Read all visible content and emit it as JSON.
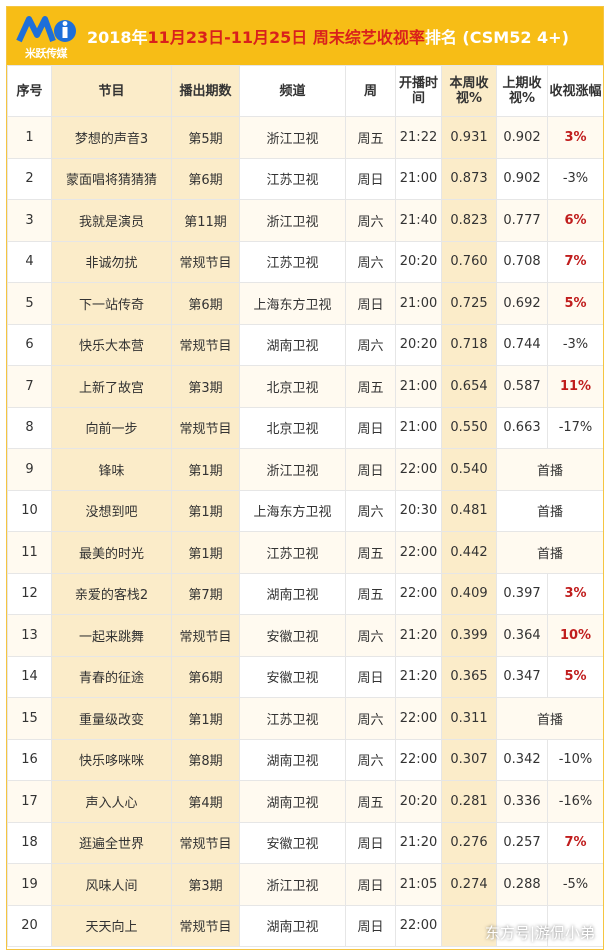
{
  "header": {
    "brand_text": "米跃传媒",
    "title_prefix": "2018年",
    "title_dates": "11月23日-11月25日 周末综艺收视率",
    "title_suffix": "排名 (CSM52 4+)"
  },
  "colors": {
    "banner": "#f7bd16",
    "accent_red": "#d9201c",
    "highlight_col": "#fbecc9"
  },
  "columns": [
    "序号",
    "节目",
    "播出期数",
    "频道",
    "周",
    "开播时间",
    "本周收视%",
    "上期收视%",
    "收视涨幅"
  ],
  "rows": [
    {
      "rank": "1",
      "program": "梦想的声音3",
      "episode": "第5期",
      "channel": "浙江卫视",
      "day": "周五",
      "time": "21:22",
      "this_week": "0.931",
      "last": "0.902",
      "change": "3%",
      "up": true
    },
    {
      "rank": "2",
      "program": "蒙面唱将猜猜猜",
      "episode": "第6期",
      "channel": "江苏卫视",
      "day": "周日",
      "time": "21:00",
      "this_week": "0.873",
      "last": "0.902",
      "change": "-3%",
      "up": false
    },
    {
      "rank": "3",
      "program": "我就是演员",
      "episode": "第11期",
      "channel": "浙江卫视",
      "day": "周六",
      "time": "21:40",
      "this_week": "0.823",
      "last": "0.777",
      "change": "6%",
      "up": true
    },
    {
      "rank": "4",
      "program": "非诚勿扰",
      "episode": "常规节目",
      "channel": "江苏卫视",
      "day": "周六",
      "time": "20:20",
      "this_week": "0.760",
      "last": "0.708",
      "change": "7%",
      "up": true
    },
    {
      "rank": "5",
      "program": "下一站传奇",
      "episode": "第6期",
      "channel": "上海东方卫视",
      "day": "周日",
      "time": "21:00",
      "this_week": "0.725",
      "last": "0.692",
      "change": "5%",
      "up": true
    },
    {
      "rank": "6",
      "program": "快乐大本营",
      "episode": "常规节目",
      "channel": "湖南卫视",
      "day": "周六",
      "time": "20:20",
      "this_week": "0.718",
      "last": "0.744",
      "change": "-3%",
      "up": false
    },
    {
      "rank": "7",
      "program": "上新了故宫",
      "episode": "第3期",
      "channel": "北京卫视",
      "day": "周五",
      "time": "21:00",
      "this_week": "0.654",
      "last": "0.587",
      "change": "11%",
      "up": true
    },
    {
      "rank": "8",
      "program": "向前一步",
      "episode": "常规节目",
      "channel": "北京卫视",
      "day": "周日",
      "time": "21:00",
      "this_week": "0.550",
      "last": "0.663",
      "change": "-17%",
      "up": false
    },
    {
      "rank": "9",
      "program": "锋味",
      "episode": "第1期",
      "channel": "浙江卫视",
      "day": "周日",
      "time": "22:00",
      "this_week": "0.540",
      "premiere": "首播"
    },
    {
      "rank": "10",
      "program": "没想到吧",
      "episode": "第1期",
      "channel": "上海东方卫视",
      "day": "周六",
      "time": "20:30",
      "this_week": "0.481",
      "premiere": "首播"
    },
    {
      "rank": "11",
      "program": "最美的时光",
      "episode": "第1期",
      "channel": "江苏卫视",
      "day": "周五",
      "time": "22:00",
      "this_week": "0.442",
      "premiere": "首播"
    },
    {
      "rank": "12",
      "program": "亲爱的客栈2",
      "episode": "第7期",
      "channel": "湖南卫视",
      "day": "周五",
      "time": "22:00",
      "this_week": "0.409",
      "last": "0.397",
      "change": "3%",
      "up": true
    },
    {
      "rank": "13",
      "program": "一起来跳舞",
      "episode": "常规节目",
      "channel": "安徽卫视",
      "day": "周六",
      "time": "21:20",
      "this_week": "0.399",
      "last": "0.364",
      "change": "10%",
      "up": true
    },
    {
      "rank": "14",
      "program": "青春的征途",
      "episode": "第6期",
      "channel": "安徽卫视",
      "day": "周日",
      "time": "21:20",
      "this_week": "0.365",
      "last": "0.347",
      "change": "5%",
      "up": true
    },
    {
      "rank": "15",
      "program": "重量级改变",
      "episode": "第1期",
      "channel": "江苏卫视",
      "day": "周六",
      "time": "22:00",
      "this_week": "0.311",
      "premiere": "首播"
    },
    {
      "rank": "16",
      "program": "快乐哆咪咪",
      "episode": "第8期",
      "channel": "湖南卫视",
      "day": "周六",
      "time": "22:00",
      "this_week": "0.307",
      "last": "0.342",
      "change": "-10%",
      "up": false
    },
    {
      "rank": "17",
      "program": "声入人心",
      "episode": "第4期",
      "channel": "湖南卫视",
      "day": "周五",
      "time": "20:20",
      "this_week": "0.281",
      "last": "0.336",
      "change": "-16%",
      "up": false
    },
    {
      "rank": "18",
      "program": "逛遍全世界",
      "episode": "常规节目",
      "channel": "安徽卫视",
      "day": "周日",
      "time": "21:20",
      "this_week": "0.276",
      "last": "0.257",
      "change": "7%",
      "up": true
    },
    {
      "rank": "19",
      "program": "风味人间",
      "episode": "第3期",
      "channel": "浙江卫视",
      "day": "周日",
      "time": "21:05",
      "this_week": "0.274",
      "last": "0.288",
      "change": "-5%",
      "up": false
    },
    {
      "rank": "20",
      "program": "天天向上",
      "episode": "常规节目",
      "channel": "湖南卫视",
      "day": "周日",
      "time": "22:00",
      "this_week": "",
      "last": "",
      "change": "",
      "up": false
    }
  ],
  "watermark": "东方号|游侃小弟"
}
